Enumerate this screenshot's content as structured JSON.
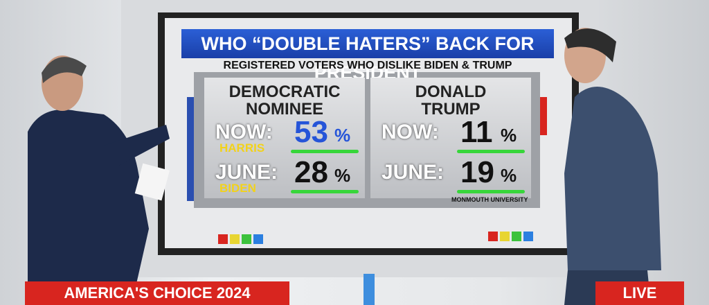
{
  "graphic": {
    "title": "WHO “DOUBLE HATERS” BACK FOR PRESIDENT",
    "subtitle": "REGISTERED VOTERS WHO DISLIKE BIDEN & TRUMP",
    "columns": [
      {
        "header": [
          "DEMOCRATIC",
          "NOMINEE"
        ],
        "rows": [
          {
            "label": "NOW:",
            "sublabel": "HARRIS",
            "value": 53,
            "unit": "%"
          },
          {
            "label": "JUNE:",
            "sublabel": "BIDEN",
            "value": 28,
            "unit": "%"
          }
        ]
      },
      {
        "header": [
          "DONALD",
          "TRUMP"
        ],
        "rows": [
          {
            "label": "NOW:",
            "value": 11,
            "unit": "%"
          },
          {
            "label": "JUNE:",
            "value": 19,
            "unit": "%"
          }
        ]
      }
    ],
    "source": "MONMOUTH UNIVERSITY"
  },
  "banner": {
    "show": "AMERICA'S CHOICE 2024",
    "status": "LIVE"
  }
}
